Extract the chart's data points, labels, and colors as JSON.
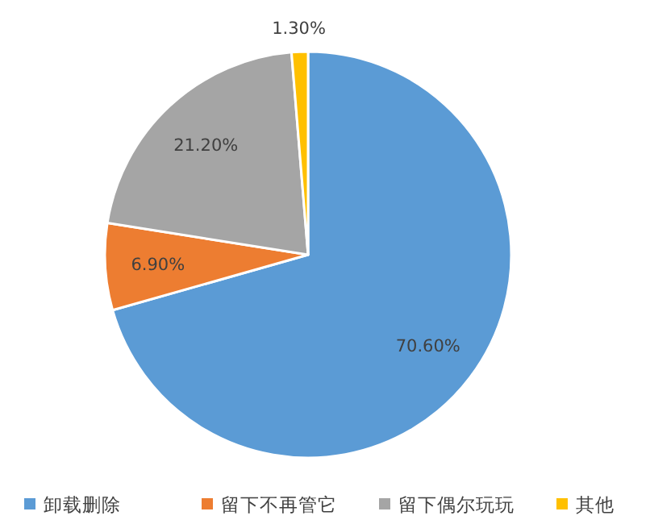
{
  "chart_data": {
    "type": "pie",
    "categories": [
      "卸载删除",
      "留下不再管它",
      "留下偶尔玩玩",
      "其他"
    ],
    "values": [
      70.6,
      6.9,
      21.2,
      1.3
    ],
    "colors": [
      "#5b9bd5",
      "#ed7d31",
      "#a5a5a5",
      "#ffc000"
    ],
    "value_labels": [
      "70.60%",
      "6.90%",
      "21.20%",
      "1.30%"
    ],
    "legend": "bottom"
  }
}
